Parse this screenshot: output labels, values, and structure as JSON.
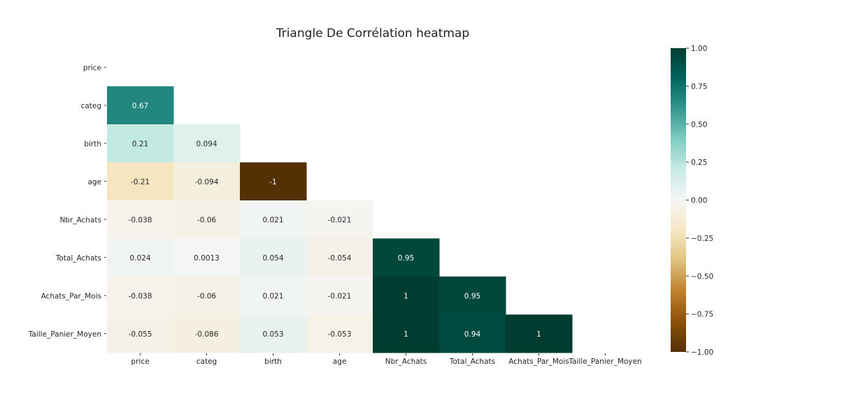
{
  "chart_data": {
    "type": "heatmap",
    "title": "Triangle De Corrélation heatmap",
    "row_labels": [
      "price",
      "categ",
      "birth",
      "age",
      "Nbr_Achats",
      "Total_Achats",
      "Achats_Par_Mois",
      "Taille_Panier_Moyen"
    ],
    "col_labels": [
      "price",
      "categ",
      "birth",
      "age",
      "Nbr_Achats",
      "Total_Achats",
      "Achats_Par_Mois",
      "Taille_Panier_Moyen"
    ],
    "mask": "upper-triangle-including-diagonal",
    "cells": [
      {
        "row": 1,
        "col": 0,
        "value": 0.67,
        "label": "0.67"
      },
      {
        "row": 2,
        "col": 0,
        "value": 0.21,
        "label": "0.21"
      },
      {
        "row": 2,
        "col": 1,
        "value": 0.094,
        "label": "0.094"
      },
      {
        "row": 3,
        "col": 0,
        "value": -0.21,
        "label": "-0.21"
      },
      {
        "row": 3,
        "col": 1,
        "value": -0.094,
        "label": "-0.094"
      },
      {
        "row": 3,
        "col": 2,
        "value": -1,
        "label": "-1"
      },
      {
        "row": 4,
        "col": 0,
        "value": -0.038,
        "label": "-0.038"
      },
      {
        "row": 4,
        "col": 1,
        "value": -0.06,
        "label": "-0.06"
      },
      {
        "row": 4,
        "col": 2,
        "value": 0.021,
        "label": "0.021"
      },
      {
        "row": 4,
        "col": 3,
        "value": -0.021,
        "label": "-0.021"
      },
      {
        "row": 5,
        "col": 0,
        "value": 0.024,
        "label": "0.024"
      },
      {
        "row": 5,
        "col": 1,
        "value": 0.0013,
        "label": "0.0013"
      },
      {
        "row": 5,
        "col": 2,
        "value": 0.054,
        "label": "0.054"
      },
      {
        "row": 5,
        "col": 3,
        "value": -0.054,
        "label": "-0.054"
      },
      {
        "row": 5,
        "col": 4,
        "value": 0.95,
        "label": "0.95"
      },
      {
        "row": 6,
        "col": 0,
        "value": -0.038,
        "label": "-0.038"
      },
      {
        "row": 6,
        "col": 1,
        "value": -0.06,
        "label": "-0.06"
      },
      {
        "row": 6,
        "col": 2,
        "value": 0.021,
        "label": "0.021"
      },
      {
        "row": 6,
        "col": 3,
        "value": -0.021,
        "label": "-0.021"
      },
      {
        "row": 6,
        "col": 4,
        "value": 1,
        "label": "1"
      },
      {
        "row": 6,
        "col": 5,
        "value": 0.95,
        "label": "0.95"
      },
      {
        "row": 7,
        "col": 0,
        "value": -0.055,
        "label": "-0.055"
      },
      {
        "row": 7,
        "col": 1,
        "value": -0.086,
        "label": "-0.086"
      },
      {
        "row": 7,
        "col": 2,
        "value": 0.053,
        "label": "0.053"
      },
      {
        "row": 7,
        "col": 3,
        "value": -0.053,
        "label": "-0.053"
      },
      {
        "row": 7,
        "col": 4,
        "value": 1,
        "label": "1"
      },
      {
        "row": 7,
        "col": 5,
        "value": 0.94,
        "label": "0.94"
      },
      {
        "row": 7,
        "col": 6,
        "value": 1,
        "label": "1"
      }
    ],
    "colorbar": {
      "vmin": -1,
      "vmax": 1,
      "ticks": [
        1,
        0.75,
        0.5,
        0.25,
        0,
        -0.25,
        -0.5,
        -0.75,
        -1
      ],
      "tick_labels": [
        "1.00",
        "0.75",
        "0.50",
        "0.25",
        "0.00",
        "−0.25",
        "−0.50",
        "−0.75",
        "−1.00"
      ],
      "placement": "right"
    },
    "colormap": {
      "name": "BrBG",
      "stops": [
        {
          "v": -1.0,
          "color": "#543005"
        },
        {
          "v": -0.8,
          "color": "#8c510a"
        },
        {
          "v": -0.6,
          "color": "#bf812d"
        },
        {
          "v": -0.4,
          "color": "#dfc27d"
        },
        {
          "v": -0.2,
          "color": "#f6e8c3"
        },
        {
          "v": 0.0,
          "color": "#f5f5f5"
        },
        {
          "v": 0.2,
          "color": "#c7eae5"
        },
        {
          "v": 0.4,
          "color": "#80cdc1"
        },
        {
          "v": 0.6,
          "color": "#35978f"
        },
        {
          "v": 0.8,
          "color": "#01665e"
        },
        {
          "v": 1.0,
          "color": "#003c30"
        }
      ]
    }
  }
}
